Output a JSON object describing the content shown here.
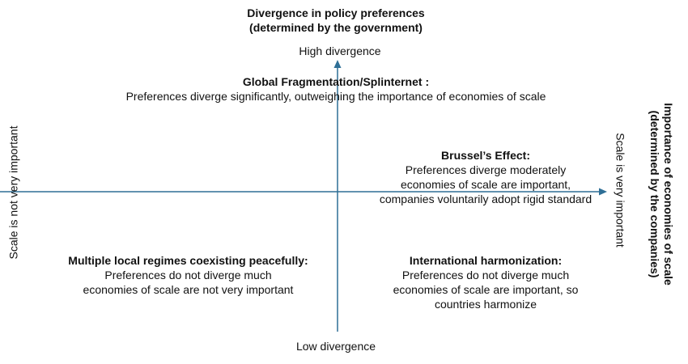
{
  "y_axis": {
    "title_line1": "Divergence in policy preferences",
    "title_line2": "(determined by the government)",
    "top_label": "High divergence",
    "bottom_label": "Low divergence"
  },
  "x_axis": {
    "left_label": "Scale is not very important",
    "right_label": "Scale is very important",
    "title_line1": "Importance of economies of scale",
    "title_line2": "(determined by the companies)"
  },
  "quadrants": {
    "top": {
      "title": "Global Fragmentation/Splinternet :",
      "line1": "Preferences diverge significantly, outweighing the importance of economies of scale"
    },
    "right": {
      "title": "Brussel’s Effect:",
      "line1": "Preferences diverge moderately",
      "line2": "economies of scale are important,",
      "line3": "companies voluntarily adopt rigid standard"
    },
    "bottom_left": {
      "title": "Multiple local regimes coexisting peacefully:",
      "line1": "Preferences do not diverge much",
      "line2": "economies of scale are not very important"
    },
    "bottom_right": {
      "title": "International harmonization:",
      "line1": "Preferences do not diverge much",
      "line2": "economies of scale are important, so",
      "line3": "countries harmonize"
    }
  },
  "colors": {
    "axis": "#2e6f96",
    "text": "#111111"
  }
}
